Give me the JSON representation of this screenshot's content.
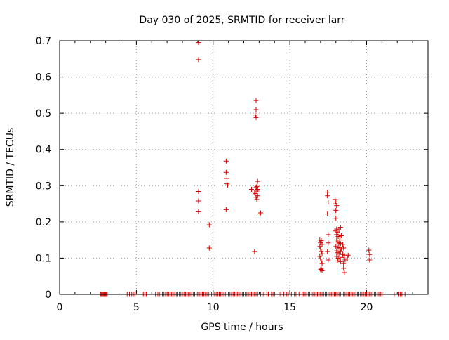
{
  "chart_data": {
    "type": "scatter",
    "title": "Day 030 of 2025, SRMTID for receiver larr",
    "xlabel": "GPS time / hours",
    "ylabel": "SRMTID / TECUs",
    "xlim": [
      0,
      24
    ],
    "ylim": [
      0,
      0.7
    ],
    "xticks": [
      0,
      5,
      10,
      15,
      20
    ],
    "yticks": [
      0,
      0.1,
      0.2,
      0.3,
      0.4,
      0.5,
      0.6,
      0.7
    ],
    "grid": true,
    "marker": "+",
    "marker_color": "#d00000",
    "series": [
      {
        "name": "larr",
        "points": [
          [
            9.05,
            0.695
          ],
          [
            9.05,
            0.648
          ],
          [
            9.05,
            0.284
          ],
          [
            9.05,
            0.258
          ],
          [
            9.05,
            0.228
          ],
          [
            9.75,
            0.192
          ],
          [
            9.75,
            0.128
          ],
          [
            9.8,
            0.125
          ],
          [
            10.85,
            0.368
          ],
          [
            10.85,
            0.337
          ],
          [
            10.9,
            0.32
          ],
          [
            10.9,
            0.306
          ],
          [
            10.95,
            0.302
          ],
          [
            10.85,
            0.234
          ],
          [
            12.8,
            0.535
          ],
          [
            12.8,
            0.51
          ],
          [
            12.75,
            0.495
          ],
          [
            12.8,
            0.488
          ],
          [
            12.9,
            0.312
          ],
          [
            12.85,
            0.298
          ],
          [
            12.8,
            0.295
          ],
          [
            12.9,
            0.29
          ],
          [
            12.85,
            0.285
          ],
          [
            12.7,
            0.282
          ],
          [
            12.75,
            0.278
          ],
          [
            12.9,
            0.272
          ],
          [
            12.8,
            0.268
          ],
          [
            12.85,
            0.262
          ],
          [
            12.5,
            0.29
          ],
          [
            13.05,
            0.222
          ],
          [
            13.1,
            0.225
          ],
          [
            12.7,
            0.118
          ],
          [
            16.95,
            0.15
          ],
          [
            17.05,
            0.148
          ],
          [
            17.0,
            0.142
          ],
          [
            17.1,
            0.138
          ],
          [
            16.95,
            0.132
          ],
          [
            17.0,
            0.125
          ],
          [
            17.05,
            0.118
          ],
          [
            17.1,
            0.112
          ],
          [
            16.95,
            0.105
          ],
          [
            17.0,
            0.098
          ],
          [
            17.05,
            0.092
          ],
          [
            17.1,
            0.085
          ],
          [
            17.05,
            0.07
          ],
          [
            17.1,
            0.065
          ],
          [
            17.0,
            0.068
          ],
          [
            17.45,
            0.282
          ],
          [
            17.45,
            0.272
          ],
          [
            17.5,
            0.255
          ],
          [
            17.45,
            0.222
          ],
          [
            17.5,
            0.165
          ],
          [
            17.5,
            0.142
          ],
          [
            17.45,
            0.118
          ],
          [
            17.5,
            0.095
          ],
          [
            17.95,
            0.262
          ],
          [
            18.0,
            0.255
          ],
          [
            17.95,
            0.25
          ],
          [
            18.05,
            0.245
          ],
          [
            18.0,
            0.232
          ],
          [
            17.95,
            0.222
          ],
          [
            18.0,
            0.21
          ],
          [
            18.05,
            0.18
          ],
          [
            17.95,
            0.175
          ],
          [
            18.1,
            0.172
          ],
          [
            18.2,
            0.178
          ],
          [
            18.3,
            0.185
          ],
          [
            18.05,
            0.165
          ],
          [
            18.15,
            0.16
          ],
          [
            18.25,
            0.158
          ],
          [
            18.35,
            0.162
          ],
          [
            18.4,
            0.15
          ],
          [
            18.05,
            0.15
          ],
          [
            18.1,
            0.145
          ],
          [
            18.2,
            0.142
          ],
          [
            18.3,
            0.14
          ],
          [
            18.45,
            0.138
          ],
          [
            18.0,
            0.132
          ],
          [
            18.15,
            0.13
          ],
          [
            18.25,
            0.128
          ],
          [
            18.35,
            0.125
          ],
          [
            18.5,
            0.128
          ],
          [
            18.05,
            0.12
          ],
          [
            18.1,
            0.115
          ],
          [
            18.2,
            0.112
          ],
          [
            18.3,
            0.118
          ],
          [
            18.45,
            0.11
          ],
          [
            18.05,
            0.105
          ],
          [
            18.15,
            0.1
          ],
          [
            18.25,
            0.098
          ],
          [
            18.4,
            0.102
          ],
          [
            18.55,
            0.108
          ],
          [
            18.1,
            0.092
          ],
          [
            18.3,
            0.09
          ],
          [
            18.5,
            0.085
          ],
          [
            18.6,
            0.095
          ],
          [
            18.75,
            0.098
          ],
          [
            18.8,
            0.108
          ],
          [
            18.5,
            0.072
          ],
          [
            18.55,
            0.06
          ],
          [
            20.15,
            0.122
          ],
          [
            20.2,
            0.11
          ],
          [
            20.2,
            0.095
          ]
        ],
        "zero_x": [
          2.65,
          2.7,
          2.75,
          2.8,
          2.85,
          2.9,
          2.95,
          3.0,
          3.05,
          3.1,
          4.4,
          4.55,
          4.7,
          4.8,
          4.9,
          5.45,
          5.55,
          5.65,
          6.25,
          6.4,
          6.5,
          6.6,
          6.7,
          6.8,
          6.9,
          7.0,
          7.1,
          7.2,
          7.3,
          7.4,
          7.5,
          7.6,
          7.7,
          7.8,
          7.9,
          8.0,
          8.1,
          8.2,
          8.3,
          8.4,
          8.5,
          8.6,
          8.7,
          8.8,
          8.9,
          9.0,
          9.1,
          9.2,
          9.3,
          9.4,
          9.5,
          9.6,
          9.7,
          9.8,
          9.9,
          10.0,
          10.1,
          10.2,
          10.3,
          10.4,
          10.5,
          10.6,
          10.7,
          10.8,
          10.9,
          11.0,
          11.1,
          11.2,
          11.3,
          11.4,
          11.5,
          11.6,
          11.7,
          11.8,
          11.9,
          12.0,
          12.1,
          12.2,
          12.3,
          12.4,
          12.5,
          12.6,
          12.7,
          12.8,
          12.9,
          13.1,
          13.2,
          13.3,
          13.5,
          13.6,
          13.8,
          13.9,
          14.0,
          14.1,
          14.3,
          14.4,
          14.6,
          14.8,
          14.9,
          15.1,
          15.3,
          15.4,
          15.6,
          15.8,
          15.9,
          16.0,
          16.1,
          16.2,
          16.3,
          16.4,
          16.5,
          16.6,
          16.7,
          16.8,
          16.9,
          17.0,
          17.1,
          17.2,
          17.3,
          17.4,
          17.5,
          17.6,
          17.7,
          17.8,
          17.9,
          18.0,
          18.1,
          18.2,
          18.3,
          18.4,
          18.5,
          18.6,
          18.7,
          18.8,
          18.9,
          19.0,
          19.1,
          19.2,
          19.3,
          19.4,
          19.5,
          19.6,
          19.7,
          19.8,
          19.9,
          20.0,
          20.1,
          20.2,
          20.3,
          20.4,
          20.5,
          20.6,
          20.7,
          20.8,
          20.9,
          21.0,
          21.8,
          22.1,
          22.2,
          22.3,
          22.5,
          22.7
        ]
      }
    ]
  }
}
